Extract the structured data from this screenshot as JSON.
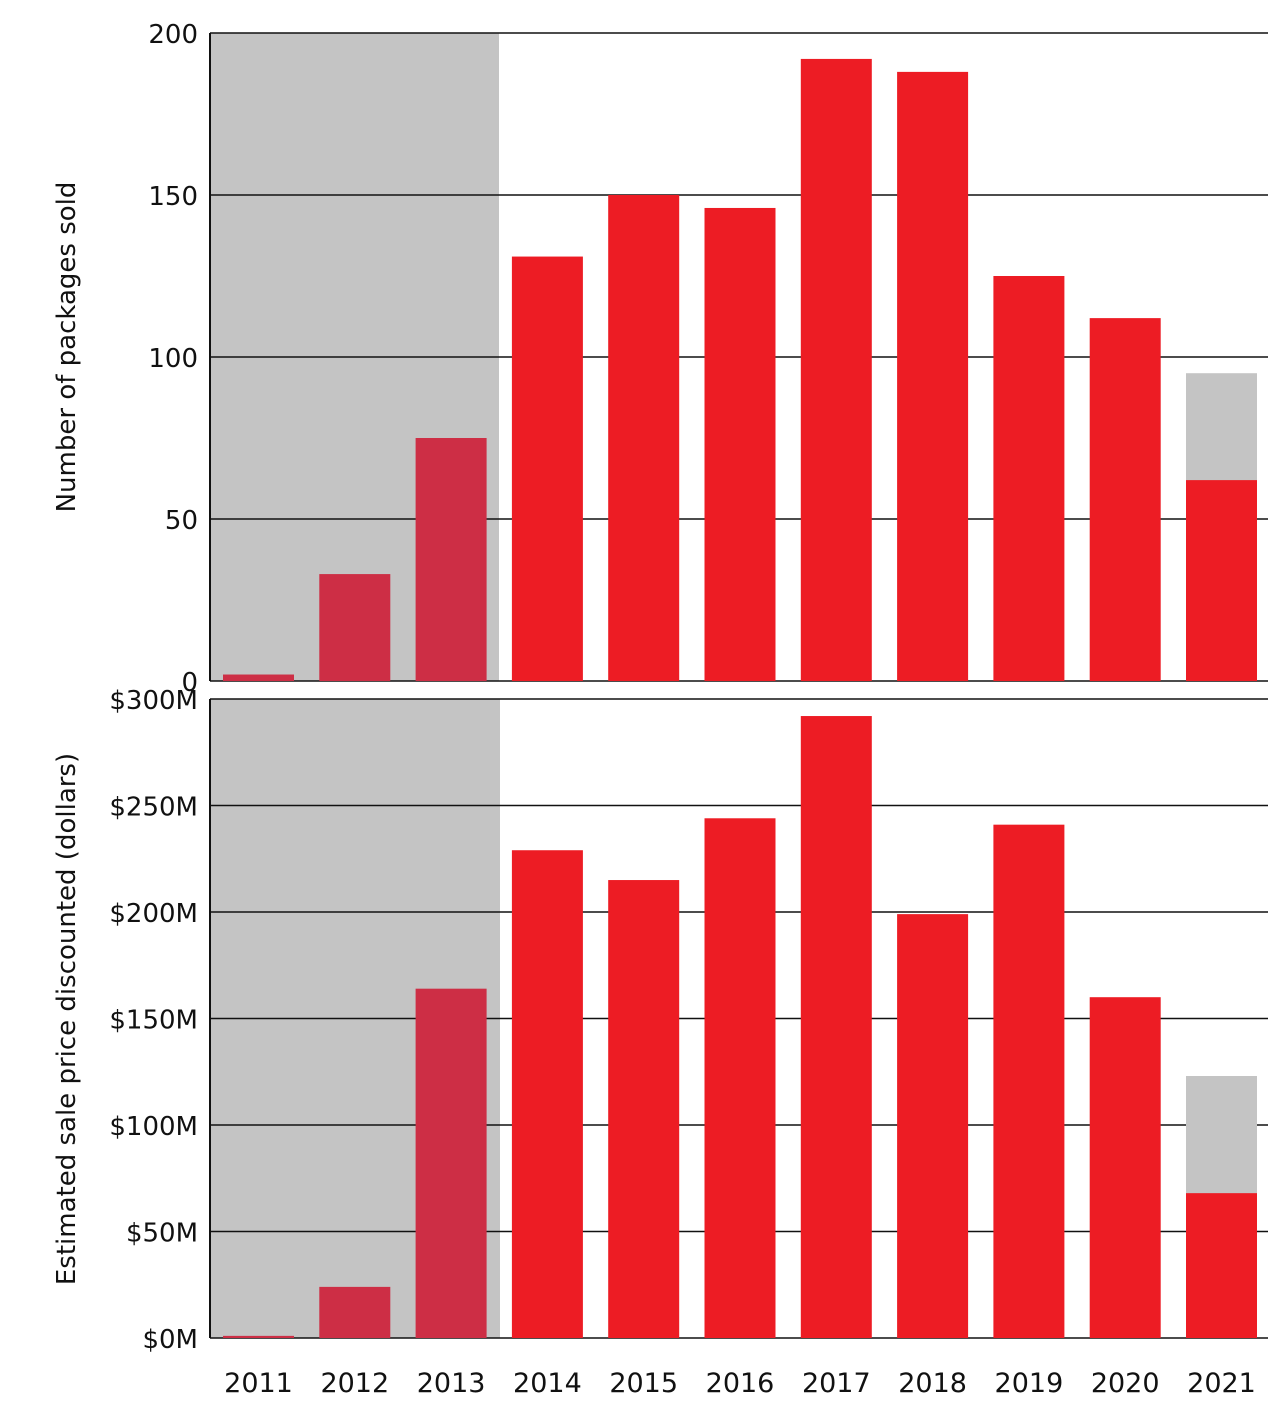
{
  "chart_data": [
    {
      "type": "bar",
      "ylabel": "Number of packages sold",
      "categories": [
        "2011",
        "2012",
        "2013",
        "2014",
        "2015",
        "2016",
        "2017",
        "2018",
        "2019",
        "2020",
        "2021"
      ],
      "values": [
        2,
        33,
        75,
        131,
        150,
        146,
        192,
        188,
        125,
        112,
        62
      ],
      "projected_values": [
        null,
        null,
        null,
        null,
        null,
        null,
        null,
        null,
        null,
        null,
        95
      ],
      "ylim": [
        0,
        200
      ],
      "yticks": [
        0,
        50,
        100,
        150,
        200
      ],
      "ytick_labels": [
        "0",
        "50",
        "100",
        "150",
        "200"
      ],
      "shaded_categories": [
        "2011",
        "2012",
        "2013"
      ],
      "grid": true
    },
    {
      "type": "bar",
      "ylabel": "Estimated sale price discounted (dollars)",
      "categories": [
        "2011",
        "2012",
        "2013",
        "2014",
        "2015",
        "2016",
        "2017",
        "2018",
        "2019",
        "2020",
        "2021"
      ],
      "values": [
        1,
        24,
        164,
        229,
        215,
        244,
        292,
        199,
        241,
        160,
        68
      ],
      "projected_values": [
        null,
        null,
        null,
        null,
        null,
        null,
        null,
        null,
        null,
        null,
        123
      ],
      "ylim": [
        0,
        300
      ],
      "yticks": [
        0,
        50,
        100,
        150,
        200,
        250,
        300
      ],
      "ytick_labels": [
        "$0M",
        "$50M",
        "$100M",
        "$150M",
        "$200M",
        "$250M",
        "$300M"
      ],
      "shaded_categories": [
        "2011",
        "2012",
        "2013"
      ],
      "grid": true
    }
  ],
  "colors": {
    "bar_main": "#ed1c24",
    "bar_early": "#cd2e45",
    "shade": "#c4c4c4",
    "projected": "#c4c4c4",
    "grid": "#111111"
  }
}
